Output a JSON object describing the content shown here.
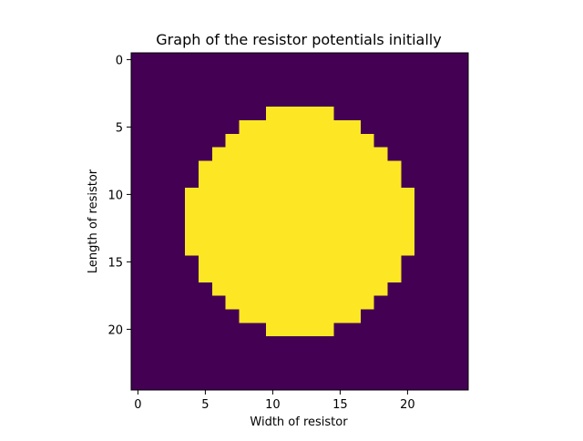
{
  "chart_data": {
    "type": "heatmap",
    "title": "Graph of the resistor potentials initially",
    "xlabel": "Width of resistor",
    "ylabel": "Length of resistor",
    "xlim": [
      -0.5,
      24.5
    ],
    "ylim": [
      24.5,
      -0.5
    ],
    "x_ticks": [
      0,
      5,
      10,
      15,
      20
    ],
    "y_ticks": [
      0,
      5,
      10,
      15,
      20
    ],
    "x_tick_labels": [
      "0",
      "5",
      "10",
      "15",
      "20"
    ],
    "y_tick_labels": [
      "0",
      "5",
      "10",
      "15",
      "20"
    ],
    "grid": false,
    "background_value": 0,
    "low_color": "#440154",
    "high_color": "#fde725",
    "high_value_rows": [
      {
        "row": 4,
        "col_start": 10,
        "col_end": 14
      },
      {
        "row": 5,
        "col_start": 8,
        "col_end": 16
      },
      {
        "row": 6,
        "col_start": 7,
        "col_end": 17
      },
      {
        "row": 7,
        "col_start": 6,
        "col_end": 18
      },
      {
        "row": 8,
        "col_start": 5,
        "col_end": 19
      },
      {
        "row": 9,
        "col_start": 5,
        "col_end": 19
      },
      {
        "row": 10,
        "col_start": 4,
        "col_end": 20
      },
      {
        "row": 11,
        "col_start": 4,
        "col_end": 20
      },
      {
        "row": 12,
        "col_start": 4,
        "col_end": 20
      },
      {
        "row": 13,
        "col_start": 4,
        "col_end": 20
      },
      {
        "row": 14,
        "col_start": 4,
        "col_end": 20
      },
      {
        "row": 15,
        "col_start": 5,
        "col_end": 19
      },
      {
        "row": 16,
        "col_start": 5,
        "col_end": 19
      },
      {
        "row": 17,
        "col_start": 6,
        "col_end": 18
      },
      {
        "row": 18,
        "col_start": 7,
        "col_end": 17
      },
      {
        "row": 19,
        "col_start": 8,
        "col_end": 16
      },
      {
        "row": 20,
        "col_start": 10,
        "col_end": 14
      }
    ]
  }
}
